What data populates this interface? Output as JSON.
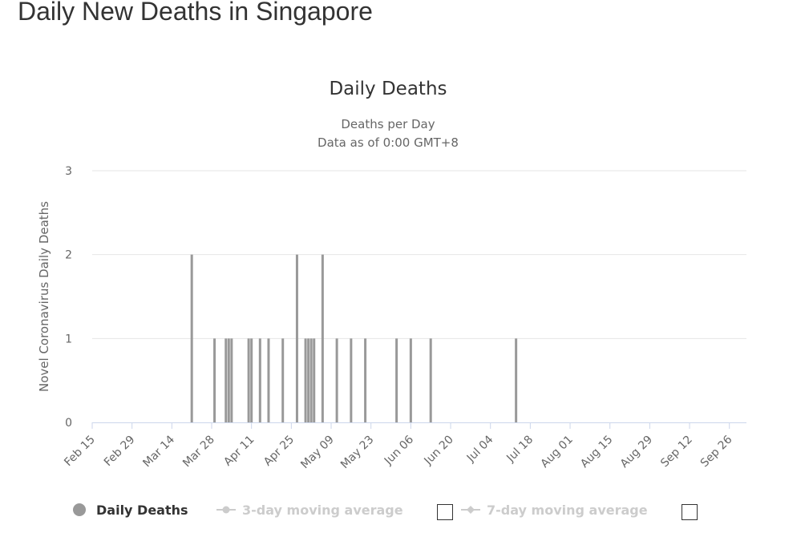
{
  "page": {
    "title": "Daily New Deaths in Singapore"
  },
  "chart_data": {
    "type": "bar",
    "title": "Daily Deaths",
    "subtitle_lines": [
      "Deaths per Day",
      "Data as of 0:00 GMT+8"
    ],
    "ylabel": "Novel Coronavirus Daily Deaths",
    "xlabel": "",
    "ylim": [
      0,
      3
    ],
    "yticks": [
      0,
      1,
      2,
      3
    ],
    "x_range": [
      "2020-02-15",
      "2020-10-02"
    ],
    "xticks": [
      "Feb 15",
      "Feb 29",
      "Mar 14",
      "Mar 28",
      "Apr 11",
      "Apr 25",
      "May 09",
      "May 23",
      "Jun 06",
      "Jun 20",
      "Jul 04",
      "Jul 18",
      "Aug 01",
      "Aug 15",
      "Aug 29",
      "Sep 12",
      "Sep 26"
    ],
    "grid": true,
    "legend_position": "bottom",
    "series": [
      {
        "name": "Daily Deaths",
        "color": "#999999",
        "points": [
          {
            "x": "2020-03-21",
            "y": 2
          },
          {
            "x": "2020-03-29",
            "y": 1
          },
          {
            "x": "2020-04-02",
            "y": 1
          },
          {
            "x": "2020-04-03",
            "y": 1
          },
          {
            "x": "2020-04-04",
            "y": 1
          },
          {
            "x": "2020-04-10",
            "y": 1
          },
          {
            "x": "2020-04-11",
            "y": 1
          },
          {
            "x": "2020-04-14",
            "y": 1
          },
          {
            "x": "2020-04-17",
            "y": 1
          },
          {
            "x": "2020-04-22",
            "y": 1
          },
          {
            "x": "2020-04-27",
            "y": 2
          },
          {
            "x": "2020-04-30",
            "y": 1
          },
          {
            "x": "2020-05-01",
            "y": 1
          },
          {
            "x": "2020-05-02",
            "y": 1
          },
          {
            "x": "2020-05-03",
            "y": 1
          },
          {
            "x": "2020-05-06",
            "y": 2
          },
          {
            "x": "2020-05-11",
            "y": 1
          },
          {
            "x": "2020-05-16",
            "y": 1
          },
          {
            "x": "2020-05-21",
            "y": 1
          },
          {
            "x": "2020-06-01",
            "y": 1
          },
          {
            "x": "2020-06-06",
            "y": 1
          },
          {
            "x": "2020-06-13",
            "y": 1
          },
          {
            "x": "2020-07-13",
            "y": 1
          }
        ]
      }
    ],
    "legend": [
      {
        "label": "Daily Deaths",
        "active": true,
        "marker": "circle",
        "color": "#999999",
        "has_checkbox": false
      },
      {
        "label": "3-day moving average",
        "active": false,
        "marker": "line-circle",
        "color": "#cccccc",
        "has_checkbox": true
      },
      {
        "label": "7-day moving average",
        "active": false,
        "marker": "line-diamond",
        "color": "#cccccc",
        "has_checkbox": true
      }
    ]
  }
}
